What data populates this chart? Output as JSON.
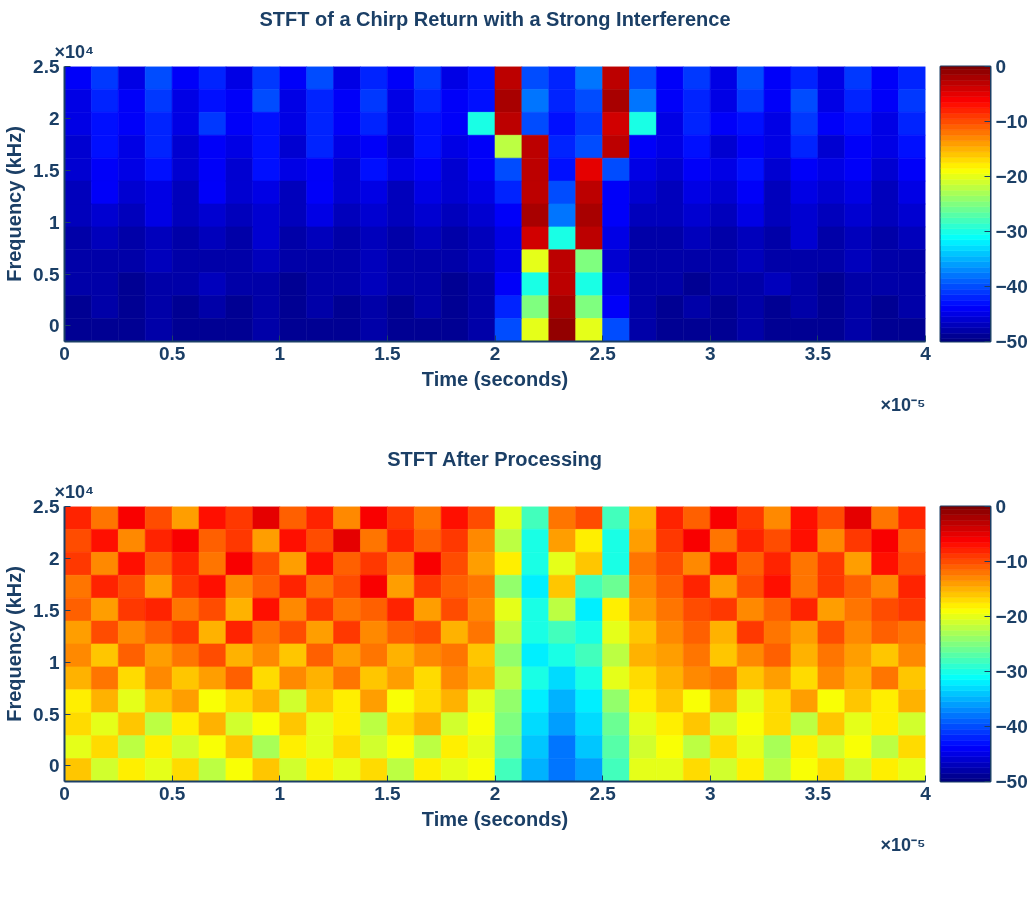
{
  "chart_data": [
    {
      "type": "heatmap",
      "title": "STFT of a Chirp Return with a Strong Interference",
      "xlabel": "Time (seconds)",
      "ylabel": "Frequency (kHz)",
      "annotations": [
        "×10⁴",
        "×10⁻⁵"
      ],
      "x": [
        0.0625,
        0.1875,
        0.3125,
        0.4375,
        0.5625,
        0.6875,
        0.8125,
        0.9375,
        1.0625,
        1.1875,
        1.3125,
        1.4375,
        1.5625,
        1.6875,
        1.8125,
        1.9375,
        2.0625,
        2.1875,
        2.3125,
        2.4375,
        2.5625,
        2.6875,
        2.8125,
        2.9375,
        3.0625,
        3.1875,
        3.3125,
        3.4375,
        3.5625,
        3.6875,
        3.8125,
        3.9375
      ],
      "y": [
        2.39,
        2.169,
        1.948,
        1.727,
        1.506,
        1.285,
        1.065,
        0.844,
        0.623,
        0.402,
        0.181,
        -0.04
      ],
      "xlim": [
        0,
        4
      ],
      "xticks": [
        0,
        0.5,
        1,
        1.5,
        2,
        2.5,
        3,
        3.5,
        4
      ],
      "ylim": [
        -0.15,
        2.5
      ],
      "yticks": [
        0,
        0.5,
        1,
        1.5,
        2,
        2.5
      ],
      "clim": [
        -50,
        0
      ],
      "cticks": [
        0,
        -10,
        -20,
        -30,
        -40,
        -50
      ],
      "cells": [
        [
          -44,
          -41,
          -45,
          -40,
          -44,
          -42,
          -45,
          -41,
          -44,
          -40,
          -45,
          -42,
          -44,
          -41,
          -45,
          -43,
          -3,
          -40,
          -42,
          -38,
          -3,
          -40,
          -44,
          -41,
          -45,
          -40,
          -44,
          -42,
          -45,
          -41,
          -44,
          -42
        ],
        [
          -45,
          -42,
          -44,
          -41,
          -45,
          -43,
          -44,
          -40,
          -45,
          -42,
          -44,
          -41,
          -45,
          -42,
          -44,
          -43,
          -2,
          -38,
          -42,
          -40,
          -2,
          -38,
          -44,
          -42,
          -45,
          -41,
          -44,
          -40,
          -45,
          -42,
          -44,
          -41
        ],
        [
          -45,
          -43,
          -44,
          -42,
          -45,
          -41,
          -44,
          -43,
          -45,
          -42,
          -44,
          -42,
          -45,
          -43,
          -44,
          -30,
          -3,
          -40,
          -43,
          -41,
          -4,
          -30,
          -45,
          -42,
          -44,
          -43,
          -45,
          -41,
          -44,
          -43,
          -45,
          -42
        ],
        [
          -46,
          -43,
          -45,
          -42,
          -46,
          -44,
          -45,
          -43,
          -46,
          -42,
          -45,
          -44,
          -46,
          -43,
          -45,
          -44,
          -22,
          -3,
          -42,
          -40,
          -3,
          -44,
          -45,
          -43,
          -46,
          -44,
          -45,
          -42,
          -46,
          -44,
          -45,
          -43
        ],
        [
          -46,
          -44,
          -45,
          -43,
          -46,
          -44,
          -46,
          -43,
          -45,
          -44,
          -46,
          -43,
          -45,
          -44,
          -46,
          -44,
          -40,
          -3,
          -43,
          -5,
          -40,
          -45,
          -46,
          -44,
          -45,
          -43,
          -46,
          -44,
          -45,
          -44,
          -46,
          -44
        ],
        [
          -47,
          -44,
          -46,
          -45,
          -47,
          -44,
          -46,
          -45,
          -47,
          -44,
          -46,
          -45,
          -47,
          -45,
          -46,
          -45,
          -42,
          -3,
          -40,
          -3,
          -44,
          -46,
          -47,
          -45,
          -46,
          -44,
          -47,
          -45,
          -46,
          -45,
          -47,
          -45
        ],
        [
          -47,
          -46,
          -47,
          -45,
          -47,
          -46,
          -47,
          -46,
          -47,
          -45,
          -47,
          -46,
          -47,
          -46,
          -47,
          -46,
          -44,
          -2,
          -38,
          -2,
          -44,
          -47,
          -47,
          -46,
          -47,
          -45,
          -47,
          -46,
          -47,
          -46,
          -47,
          -46
        ],
        [
          -48,
          -47,
          -48,
          -47,
          -48,
          -47,
          -48,
          -46,
          -48,
          -47,
          -48,
          -47,
          -48,
          -47,
          -48,
          -47,
          -45,
          -4,
          -30,
          -3,
          -45,
          -48,
          -48,
          -47,
          -48,
          -47,
          -48,
          -46,
          -48,
          -47,
          -48,
          -47
        ],
        [
          -48,
          -48,
          -48,
          -47,
          -48,
          -48,
          -48,
          -47,
          -48,
          -48,
          -48,
          -47,
          -48,
          -48,
          -48,
          -47,
          -45,
          -20,
          -3,
          -25,
          -46,
          -48,
          -48,
          -48,
          -48,
          -47,
          -48,
          -48,
          -48,
          -47,
          -48,
          -48
        ],
        [
          -48,
          -48,
          -49,
          -48,
          -48,
          -47,
          -48,
          -48,
          -49,
          -48,
          -48,
          -47,
          -48,
          -48,
          -49,
          -48,
          -44,
          -30,
          -3,
          -30,
          -45,
          -48,
          -48,
          -49,
          -48,
          -48,
          -47,
          -48,
          -49,
          -48,
          -48,
          -48
        ],
        [
          -49,
          -48,
          -49,
          -48,
          -49,
          -48,
          -49,
          -48,
          -49,
          -48,
          -49,
          -48,
          -49,
          -48,
          -49,
          -48,
          -42,
          -25,
          -2,
          -25,
          -44,
          -48,
          -49,
          -48,
          -49,
          -48,
          -49,
          -48,
          -49,
          -48,
          -49,
          -48
        ],
        [
          -49,
          -49,
          -49,
          -48,
          -49,
          -49,
          -49,
          -48,
          -49,
          -49,
          -49,
          -48,
          -49,
          -49,
          -49,
          -48,
          -40,
          -20,
          -1,
          -20,
          -40,
          -48,
          -49,
          -49,
          -49,
          -48,
          -49,
          -49,
          -49,
          -48,
          -49,
          -49
        ]
      ]
    },
    {
      "type": "heatmap",
      "title": "STFT After Processing",
      "xlabel": "Time (seconds)",
      "ylabel": "Frequency (kHz)",
      "annotations": [
        "×10⁴",
        "×10⁻⁵"
      ],
      "x": [
        0.0625,
        0.1875,
        0.3125,
        0.4375,
        0.5625,
        0.6875,
        0.8125,
        0.9375,
        1.0625,
        1.1875,
        1.3125,
        1.4375,
        1.5625,
        1.6875,
        1.8125,
        1.9375,
        2.0625,
        2.1875,
        2.3125,
        2.4375,
        2.5625,
        2.6875,
        2.8125,
        2.9375,
        3.0625,
        3.1875,
        3.3125,
        3.4375,
        3.5625,
        3.6875,
        3.8125,
        3.9375
      ],
      "y": [
        2.39,
        2.169,
        1.948,
        1.727,
        1.506,
        1.285,
        1.065,
        0.844,
        0.623,
        0.402,
        0.181,
        -0.04
      ],
      "xlim": [
        0,
        4
      ],
      "xticks": [
        0,
        0.5,
        1,
        1.5,
        2,
        2.5,
        3,
        3.5,
        4
      ],
      "ylim": [
        -0.15,
        2.5
      ],
      "yticks": [
        0,
        0.5,
        1,
        1.5,
        2,
        2.5
      ],
      "clim": [
        -50,
        0
      ],
      "cticks": [
        0,
        -10,
        -20,
        -30,
        -40,
        -50
      ],
      "cells": [
        [
          -8,
          -12,
          -6,
          -10,
          -14,
          -7,
          -9,
          -5,
          -11,
          -8,
          -13,
          -6,
          -9,
          -12,
          -7,
          -10,
          -20,
          -28,
          -12,
          -10,
          -28,
          -15,
          -8,
          -11,
          -6,
          -9,
          -13,
          -7,
          -10,
          -5,
          -12,
          -8
        ],
        [
          -10,
          -7,
          -13,
          -8,
          -6,
          -11,
          -9,
          -14,
          -7,
          -10,
          -5,
          -12,
          -8,
          -11,
          -9,
          -13,
          -22,
          -30,
          -14,
          -18,
          -30,
          -14,
          -9,
          -6,
          -12,
          -8,
          -10,
          -7,
          -13,
          -9,
          -6,
          -11
        ],
        [
          -9,
          -13,
          -7,
          -11,
          -8,
          -12,
          -6,
          -10,
          -14,
          -7,
          -11,
          -9,
          -12,
          -6,
          -10,
          -14,
          -18,
          -30,
          -20,
          -16,
          -30,
          -12,
          -10,
          -13,
          -7,
          -11,
          -8,
          -12,
          -9,
          -14,
          -7,
          -10
        ],
        [
          -12,
          -8,
          -10,
          -14,
          -9,
          -7,
          -13,
          -11,
          -8,
          -12,
          -10,
          -6,
          -14,
          -9,
          -11,
          -12,
          -24,
          -32,
          -16,
          -28,
          -26,
          -13,
          -11,
          -8,
          -14,
          -10,
          -7,
          -12,
          -9,
          -11,
          -13,
          -8
        ],
        [
          -11,
          -14,
          -9,
          -8,
          -12,
          -10,
          -15,
          -7,
          -13,
          -9,
          -12,
          -11,
          -8,
          -14,
          -10,
          -13,
          -20,
          -30,
          -22,
          -32,
          -18,
          -14,
          -12,
          -10,
          -9,
          -13,
          -11,
          -8,
          -14,
          -12,
          -10,
          -9
        ],
        [
          -14,
          -10,
          -13,
          -11,
          -9,
          -15,
          -8,
          -12,
          -10,
          -14,
          -9,
          -13,
          -11,
          -10,
          -15,
          -12,
          -22,
          -30,
          -28,
          -30,
          -20,
          -16,
          -13,
          -11,
          -15,
          -9,
          -12,
          -14,
          -10,
          -13,
          -11,
          -12
        ],
        [
          -13,
          -16,
          -11,
          -14,
          -12,
          -10,
          -15,
          -13,
          -16,
          -11,
          -14,
          -12,
          -15,
          -13,
          -12,
          -16,
          -24,
          -32,
          -30,
          -28,
          -22,
          -15,
          -14,
          -12,
          -16,
          -13,
          -11,
          -15,
          -12,
          -14,
          -16,
          -13
        ],
        [
          -15,
          -12,
          -17,
          -13,
          -16,
          -14,
          -11,
          -17,
          -13,
          -15,
          -12,
          -16,
          -14,
          -17,
          -13,
          -15,
          -22,
          -30,
          -33,
          -30,
          -20,
          -17,
          -15,
          -13,
          -12,
          -16,
          -14,
          -17,
          -13,
          -15,
          -12,
          -16
        ],
        [
          -18,
          -15,
          -20,
          -16,
          -14,
          -19,
          -17,
          -15,
          -21,
          -16,
          -18,
          -14,
          -19,
          -17,
          -15,
          -20,
          -24,
          -32,
          -35,
          -32,
          -24,
          -18,
          -16,
          -19,
          -15,
          -20,
          -17,
          -14,
          -19,
          -16,
          -18,
          -15
        ],
        [
          -17,
          -20,
          -16,
          -22,
          -18,
          -15,
          -21,
          -19,
          -16,
          -20,
          -18,
          -22,
          -17,
          -15,
          -21,
          -19,
          -25,
          -33,
          -36,
          -33,
          -26,
          -20,
          -18,
          -16,
          -21,
          -19,
          -17,
          -22,
          -16,
          -20,
          -18,
          -21
        ],
        [
          -20,
          -17,
          -22,
          -18,
          -21,
          -19,
          -16,
          -23,
          -18,
          -20,
          -17,
          -21,
          -19,
          -22,
          -18,
          -20,
          -26,
          -34,
          -38,
          -34,
          -27,
          -21,
          -19,
          -22,
          -17,
          -20,
          -23,
          -18,
          -21,
          -19,
          -22,
          -17
        ],
        [
          -16,
          -21,
          -18,
          -20,
          -17,
          -22,
          -19,
          -16,
          -21,
          -18,
          -20,
          -17,
          -22,
          -18,
          -20,
          -19,
          -28,
          -35,
          -38,
          -36,
          -28,
          -20,
          -20,
          -17,
          -21,
          -18,
          -22,
          -19,
          -17,
          -21,
          -18,
          -20
        ]
      ]
    }
  ]
}
